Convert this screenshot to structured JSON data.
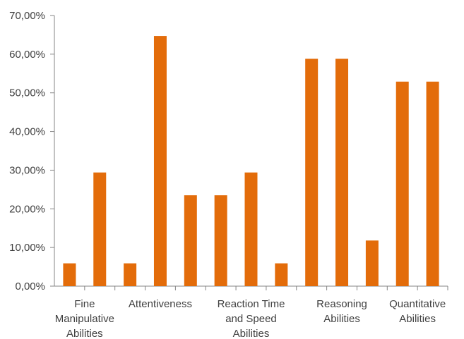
{
  "chart_data": {
    "type": "bar",
    "title": "",
    "xlabel": "",
    "ylabel": "",
    "ylim": [
      0,
      0.7
    ],
    "y_ticks": [
      "0,00%",
      "10,00%",
      "20,00%",
      "30,00%",
      "40,00%",
      "50,00%",
      "60,00%",
      "70,00%"
    ],
    "y_tick_values": [
      0,
      0.1,
      0.2,
      0.3,
      0.4,
      0.5,
      0.6,
      0.7
    ],
    "grid": false,
    "bar_color": "#E36C0A",
    "axis_color": "#868686",
    "groups": [
      {
        "label": [
          "Fine",
          "Manipulative",
          "Abilities"
        ],
        "values": [
          0.059,
          0.294
        ]
      },
      {
        "label": [
          "Attentiveness"
        ],
        "values": [
          0.059,
          0.647,
          0.235
        ]
      },
      {
        "label": [
          "Reaction Time",
          "and Speed",
          "Abilities"
        ],
        "values": [
          0.235,
          0.294,
          0.059
        ]
      },
      {
        "label": [
          "Reasoning",
          "Abilities"
        ],
        "values": [
          0.588,
          0.588,
          0.118
        ]
      },
      {
        "label": [
          "Quantitative",
          "Abilities"
        ],
        "values": [
          0.529,
          0.529
        ]
      }
    ]
  }
}
